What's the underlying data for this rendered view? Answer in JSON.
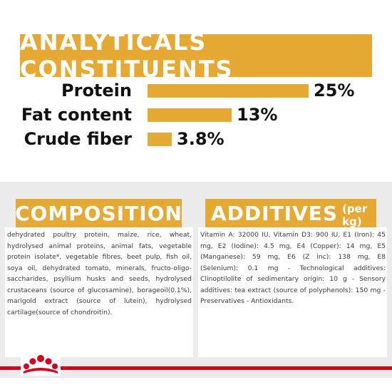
{
  "title": "ANALYTICALS CONSTITUENTS",
  "nutrients": [
    {
      "label": "Protein",
      "value_text": "25%",
      "value": 25
    },
    {
      "label": "Fat content",
      "value_text": "13%",
      "value": 13
    },
    {
      "label": "Crude fiber",
      "value_text": "3.8%",
      "value": 3.8
    }
  ],
  "composition": {
    "heading": "COMPOSITION",
    "text": "dehydrated poultry protein, maize, rice, wheat, hydrolysed animal proteins, animal fats, vegetable protein isolate*, vegetable fibres, beet pulp, fish oil, soya oil, dehydrated tomato, minerals, fructo-oligo-saccharides, psyllium husks and seeds, hydrolysed crustaceans (source of glucosamine), borageoil(0.1%), marigold extract (source of lutein), hydrolysed cartilage(source of chondroitin)."
  },
  "additives": {
    "heading": "ADDITIVES",
    "heading_sub": "(per kg)",
    "text": "Vitamin A: 32000 IU, Vitamin D3: 900 IU, E1 (Iron): 45 mg, E2 (Iodine): 4.5 mg, E4 (Copper): 14 mg, E5 (Manganese): 59 mg, E6 (Z inc): 138 mg, E8 (Selenium): 0.1 mg - Technological additives: Clinoptilolite of sedimentary origin: 10 g - Sensory additives: tea extract (source of polyphenols): 150 mg - Preservatives - Antioxidants."
  },
  "colors": {
    "accent": "#e6a933",
    "brand_red": "#d6001c",
    "panel_bg": "#ececec"
  },
  "icons": {
    "brand": "royal-canin-crown-icon"
  }
}
